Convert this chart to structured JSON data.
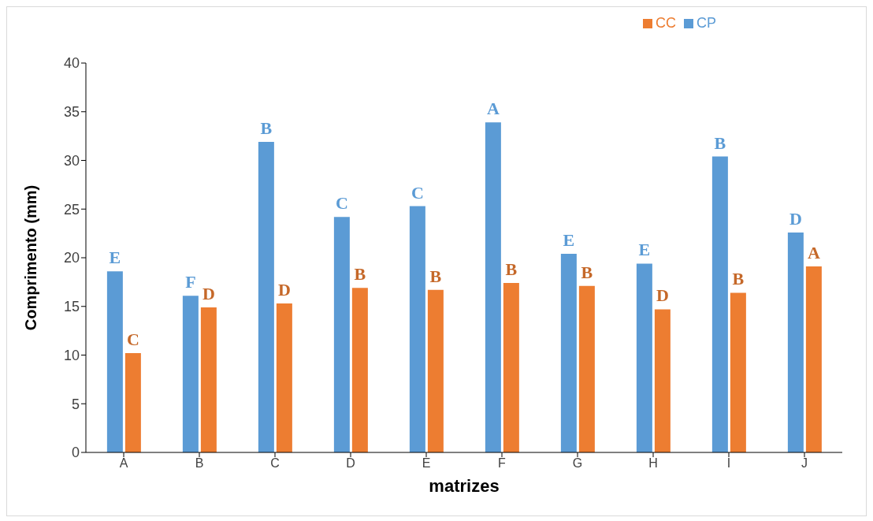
{
  "chart_data": {
    "type": "bar",
    "xlabel": "matrizes",
    "ylabel": "Comprimento (mm)",
    "categories": [
      "A",
      "B",
      "C",
      "D",
      "E",
      "F",
      "G",
      "H",
      "I",
      "J"
    ],
    "series": [
      {
        "name": "CP",
        "color": "#5b9bd5",
        "values": [
          18.6,
          16.1,
          31.9,
          24.2,
          25.3,
          33.9,
          20.4,
          19.4,
          30.4,
          22.6
        ],
        "value_labels": [
          "E",
          "F",
          "B",
          "C",
          "C",
          "A",
          "E",
          "E",
          "B",
          "D"
        ]
      },
      {
        "name": "CC",
        "color": "#ed7d31",
        "values": [
          10.2,
          14.9,
          15.3,
          16.9,
          16.7,
          17.4,
          17.1,
          14.7,
          16.4,
          19.1
        ],
        "value_labels": [
          "C",
          "D",
          "D",
          "B",
          "B",
          "B",
          "B",
          "D",
          "B",
          "A"
        ]
      }
    ],
    "ylim": [
      0,
      40
    ],
    "yticks": [
      0,
      5,
      10,
      15,
      20,
      25,
      30,
      35,
      40
    ],
    "grid": false,
    "legend": "top right"
  }
}
